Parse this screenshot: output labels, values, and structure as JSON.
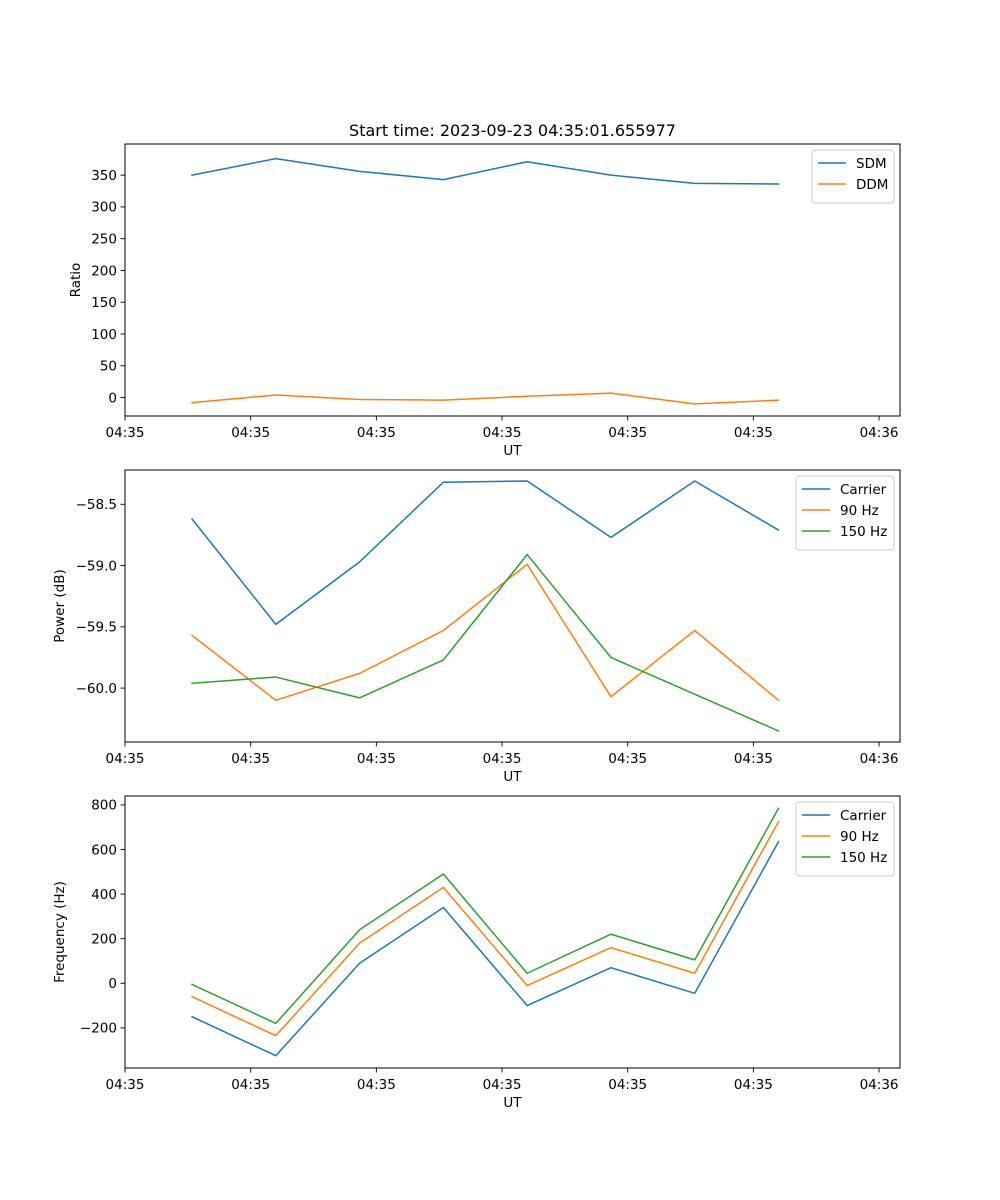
{
  "figure_title": "Start time: 2023-09-23 04:35:01.655977",
  "colors": {
    "blue": "#1f77b4",
    "orange": "#ff7f0e",
    "green": "#2ca02c"
  },
  "chart_data": [
    {
      "type": "line",
      "title": "Start time: 2023-09-23 04:35:01.655977",
      "xlabel": "UT",
      "ylabel": "Ratio",
      "x": [
        1,
        2,
        3,
        4,
        5,
        6,
        7,
        8
      ],
      "xlim": [
        0.2,
        9.45
      ],
      "xticks": [
        0.2,
        1.7,
        3.2,
        4.7,
        6.2,
        7.7,
        9.2
      ],
      "xticklabels": [
        "04:35",
        "04:35",
        "04:35",
        "04:35",
        "04:35",
        "04:35",
        "04:36"
      ],
      "ylim": [
        -29,
        399
      ],
      "yticks": [
        0,
        50,
        100,
        150,
        200,
        250,
        300,
        350
      ],
      "yticklabels": [
        "0",
        "50",
        "100",
        "150",
        "200",
        "250",
        "300",
        "350"
      ],
      "legend": "top-right",
      "series": [
        {
          "name": "SDM",
          "color": "#1f77b4",
          "values": [
            350,
            376,
            356,
            343,
            371,
            350,
            337,
            336
          ]
        },
        {
          "name": "DDM",
          "color": "#ff7f0e",
          "values": [
            -8,
            4,
            -3,
            -4,
            2,
            7,
            -10,
            -4
          ]
        }
      ]
    },
    {
      "type": "line",
      "title": "",
      "xlabel": "UT",
      "ylabel": "Power (dB)",
      "x": [
        1,
        2,
        3,
        4,
        5,
        6,
        7,
        8
      ],
      "xlim": [
        0.2,
        9.45
      ],
      "xticks": [
        0.2,
        1.7,
        3.2,
        4.7,
        6.2,
        7.7,
        9.2
      ],
      "xticklabels": [
        "04:35",
        "04:35",
        "04:35",
        "04:35",
        "04:35",
        "04:35",
        "04:36"
      ],
      "ylim": [
        -60.44,
        -58.22
      ],
      "yticks": [
        -60.0,
        -59.5,
        -59.0,
        -58.5
      ],
      "yticklabels": [
        "−60.0",
        "−59.5",
        "−59.0",
        "−58.5"
      ],
      "legend": "top-right",
      "series": [
        {
          "name": "Carrier",
          "color": "#1f77b4",
          "values": [
            -58.62,
            -59.48,
            -58.97,
            -58.32,
            -58.31,
            -58.77,
            -58.31,
            -58.71
          ]
        },
        {
          "name": "90 Hz",
          "color": "#ff7f0e",
          "values": [
            -59.57,
            -60.1,
            -59.88,
            -59.53,
            -58.99,
            -60.07,
            -59.53,
            -60.1
          ]
        },
        {
          "name": "150 Hz",
          "color": "#2ca02c",
          "values": [
            -59.96,
            -59.91,
            -60.08,
            -59.77,
            -58.91,
            -59.75,
            -60.05,
            -60.35
          ]
        }
      ]
    },
    {
      "type": "line",
      "title": "",
      "xlabel": "UT",
      "ylabel": "Frequency (Hz)",
      "x": [
        1,
        2,
        3,
        4,
        5,
        6,
        7,
        8
      ],
      "xlim": [
        0.2,
        9.45
      ],
      "xticks": [
        0.2,
        1.7,
        3.2,
        4.7,
        6.2,
        7.7,
        9.2
      ],
      "xticklabels": [
        "04:35",
        "04:35",
        "04:35",
        "04:35",
        "04:35",
        "04:35",
        "04:36"
      ],
      "ylim": [
        -380,
        840
      ],
      "yticks": [
        -200,
        0,
        200,
        400,
        600,
        800
      ],
      "yticklabels": [
        "−200",
        "0",
        "200",
        "400",
        "600",
        "800"
      ],
      "legend": "top-right",
      "series": [
        {
          "name": "Carrier",
          "color": "#1f77b4",
          "values": [
            -150,
            -325,
            90,
            340,
            -100,
            70,
            -45,
            635
          ]
        },
        {
          "name": "90 Hz",
          "color": "#ff7f0e",
          "values": [
            -60,
            -235,
            180,
            430,
            -10,
            160,
            45,
            725
          ]
        },
        {
          "name": "150 Hz",
          "color": "#2ca02c",
          "values": [
            -5,
            -180,
            240,
            490,
            45,
            220,
            105,
            785
          ]
        }
      ]
    }
  ]
}
